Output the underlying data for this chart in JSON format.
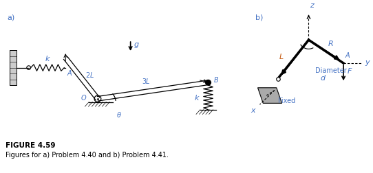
{
  "fig_width": 5.42,
  "fig_height": 2.52,
  "dpi": 100,
  "bg_color": "#ffffff",
  "blue": "#4472C4",
  "black": "#000000",
  "orange": "#C55A11",
  "gray": "#999999",
  "caption_title": "FIGURE 4.59",
  "caption_text": "Figures for a) Problem 4.40 and b) Problem 4.41."
}
